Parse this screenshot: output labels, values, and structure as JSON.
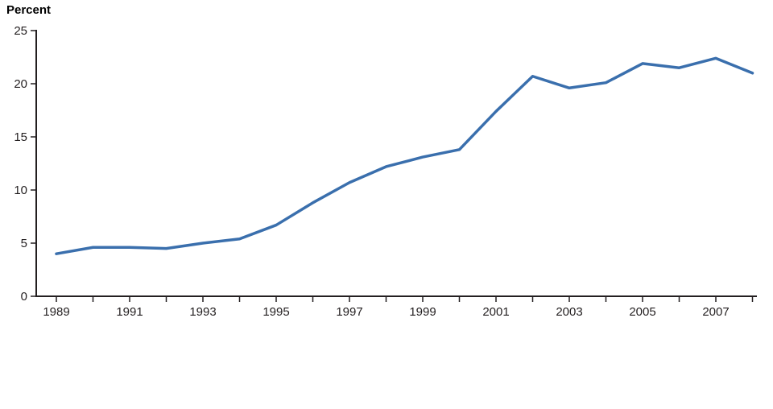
{
  "chart_data": {
    "type": "line",
    "title": "",
    "xlabel": "",
    "ylabel": "Percent",
    "ylim": [
      0,
      25
    ],
    "yticks": [
      0,
      5,
      10,
      15,
      20,
      25
    ],
    "x": [
      1989,
      1990,
      1991,
      1992,
      1993,
      1994,
      1995,
      1996,
      1997,
      1998,
      1999,
      2000,
      2001,
      2002,
      2003,
      2004,
      2005,
      2006,
      2007,
      2008
    ],
    "xtick_labels": [
      1989,
      1991,
      1993,
      1995,
      1997,
      1999,
      2001,
      2003,
      2005,
      2007
    ],
    "grid": false,
    "legend": "none",
    "series": [
      {
        "name": "Percent",
        "color": "#3A6FAD",
        "values": [
          4.0,
          4.6,
          4.6,
          4.5,
          5.0,
          5.4,
          6.7,
          8.8,
          10.7,
          12.2,
          13.1,
          13.8,
          17.4,
          20.7,
          19.6,
          20.1,
          21.9,
          21.5,
          22.4,
          21.0
        ]
      }
    ],
    "axis_color": "#231f20"
  }
}
